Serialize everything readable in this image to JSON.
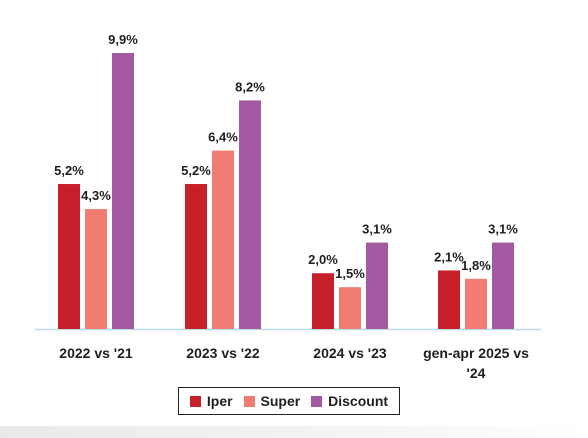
{
  "chart_data": {
    "type": "bar",
    "categories": [
      "2022 vs '21",
      "2023 vs '22",
      "2024 vs '23",
      [
        "gen-apr 2025 vs",
        "'24"
      ]
    ],
    "series": [
      {
        "name": "Iper",
        "values": [
          5.2,
          5.2,
          2.0,
          2.1
        ],
        "labels": [
          "5,2%",
          "5,2%",
          "2,0%",
          "2,1%"
        ],
        "color": "#c8202a"
      },
      {
        "name": "Super",
        "values": [
          4.3,
          6.4,
          1.5,
          1.8
        ],
        "labels": [
          "4,3%",
          "6,4%",
          "1,5%",
          "1,8%"
        ],
        "color": "#f07c72"
      },
      {
        "name": "Discount",
        "values": [
          9.9,
          8.2,
          3.1,
          3.1
        ],
        "labels": [
          "9,9%",
          "8,2%",
          "3,1%",
          "3,1%"
        ],
        "color": "#a35aa2"
      }
    ],
    "ylim": [
      0,
      9.9
    ],
    "grid": false,
    "legend_position": "bottom",
    "baseline_color": "#b9dce8"
  }
}
